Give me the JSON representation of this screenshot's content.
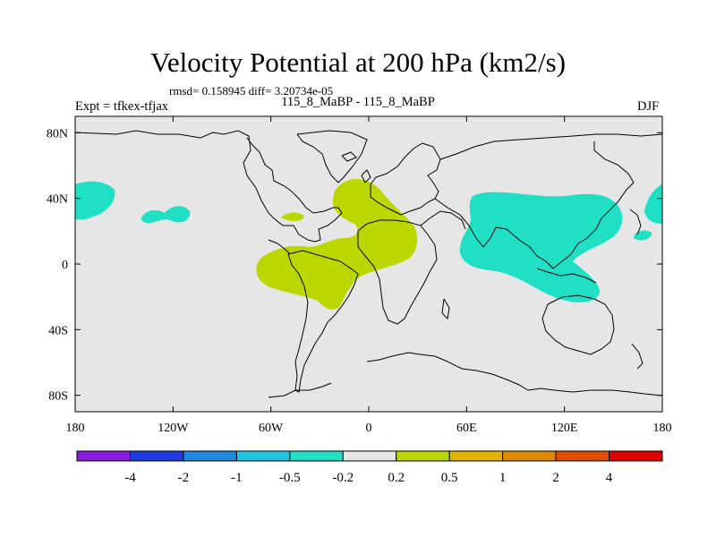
{
  "title": "Velocity Potential at 200 hPa (km2/s)",
  "stats": {
    "rmsd_label": "rmsd=",
    "rmsd": "0.158945",
    "diff_label": "diff=",
    "diff": "3.20734e-05"
  },
  "left_label": "Expt = tfkex-tfjax",
  "center_label": "115_8_MaBP - 115_8_MaBP",
  "right_label": "DJF",
  "map": {
    "projection": "cylindrical-equidistant",
    "lon_range": [
      -180,
      180
    ],
    "lat_range": [
      -90,
      90
    ],
    "background_color": "#e6e6e6",
    "x_ticks": [
      {
        "lon": -180,
        "label": "180"
      },
      {
        "lon": -120,
        "label": "120W"
      },
      {
        "lon": -60,
        "label": "60W"
      },
      {
        "lon": 0,
        "label": "0"
      },
      {
        "lon": 60,
        "label": "60E"
      },
      {
        "lon": 120,
        "label": "120E"
      },
      {
        "lon": 180,
        "label": "180"
      }
    ],
    "y_ticks": [
      {
        "lat": 80,
        "label": "80N"
      },
      {
        "lat": 40,
        "label": "40N"
      },
      {
        "lat": 0,
        "label": "0"
      },
      {
        "lat": -40,
        "label": "40S"
      },
      {
        "lat": -80,
        "label": "80S"
      }
    ]
  },
  "anomaly_regions": [
    {
      "sign": "negative",
      "bin": "-0.5 to -0.2",
      "color": "#1fe0c4",
      "region": "central-west-pacific"
    },
    {
      "sign": "negative",
      "bin": "-0.5 to -0.2",
      "color": "#1fe0c4",
      "region": "north-pacific"
    },
    {
      "sign": "negative",
      "bin": "-0.5 to -0.2",
      "color": "#1fe0c4",
      "region": "indian-ocean-asia"
    },
    {
      "sign": "positive",
      "bin": "0.2 to 0.5",
      "color": "#bcd600",
      "region": "atlantic-africa"
    }
  ],
  "colorbar": {
    "colors": [
      "#8a1ee0",
      "#1e3ae0",
      "#1e88e0",
      "#1ec4e0",
      "#1fe0c4",
      "#e6e6e6",
      "#bcd600",
      "#e0b400",
      "#e08800",
      "#e04c00",
      "#e00000"
    ],
    "labels": [
      "-4",
      "-2",
      "-1",
      "-0.5",
      "-0.2",
      "0.2",
      "0.5",
      "1",
      "2",
      "4"
    ]
  }
}
